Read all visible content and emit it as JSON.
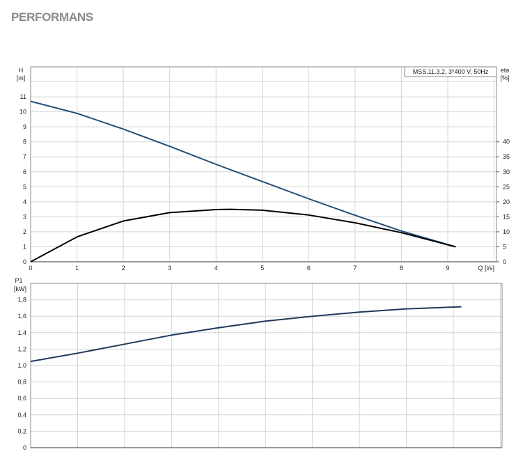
{
  "page_title": "PERFORMANS",
  "chart_data": [
    {
      "type": "line",
      "legend_label": "MSS.11.3.2, 3*400 V, 50Hz",
      "legend_placement": "top-right",
      "xlabel": "Q [l/s]",
      "ylabel": [
        "H",
        "[m]"
      ],
      "y2label": [
        "eta",
        "[%]"
      ],
      "xlim": [
        0,
        10
      ],
      "ylim": [
        0,
        13
      ],
      "y2lim": [
        0,
        65
      ],
      "grid": true,
      "x_ticks": [
        "0",
        "1",
        "2",
        "3",
        "4",
        "5",
        "6",
        "7",
        "8",
        "9"
      ],
      "y_ticks": [
        "0",
        "1",
        "2",
        "3",
        "4",
        "5",
        "6",
        "7",
        "8",
        "9",
        "10",
        "11"
      ],
      "y2_ticks": [
        "0",
        "5",
        "10",
        "15",
        "20",
        "25",
        "30",
        "35",
        "40"
      ],
      "series": [
        {
          "axis": "H",
          "color": "#1f4e79",
          "x": [
            0,
            1,
            2,
            3,
            4,
            5,
            6,
            7,
            8,
            9.17
          ],
          "y": [
            10.7,
            9.9,
            8.85,
            7.7,
            6.5,
            5.35,
            4.2,
            3.1,
            2.05,
            1.0
          ]
        },
        {
          "axis": "eta",
          "color": "#000000",
          "x": [
            0,
            1,
            2,
            3,
            4,
            4.3,
            5,
            6,
            7,
            8,
            9.17
          ],
          "y": [
            0,
            8.3,
            13.6,
            16.4,
            17.4,
            17.5,
            17.2,
            15.6,
            13,
            9.7,
            5
          ]
        }
      ]
    },
    {
      "type": "line",
      "ylabel": [
        "P1",
        "[kW]"
      ],
      "xlim": [
        0,
        10.1
      ],
      "ylim": [
        0,
        2.0
      ],
      "grid": true,
      "y_ticks": [
        "0",
        "0,2",
        "0,4",
        "0,6",
        "0,8",
        "1,0",
        "1,2",
        "1,4",
        "1,6",
        "1,8"
      ],
      "series": [
        {
          "axis": "P1",
          "color": "#1f3a5a",
          "x": [
            0,
            1,
            2,
            3,
            4,
            5,
            6,
            7,
            8,
            9.17
          ],
          "y": [
            1.05,
            1.15,
            1.26,
            1.37,
            1.46,
            1.54,
            1.6,
            1.65,
            1.69,
            1.715
          ]
        }
      ]
    }
  ]
}
